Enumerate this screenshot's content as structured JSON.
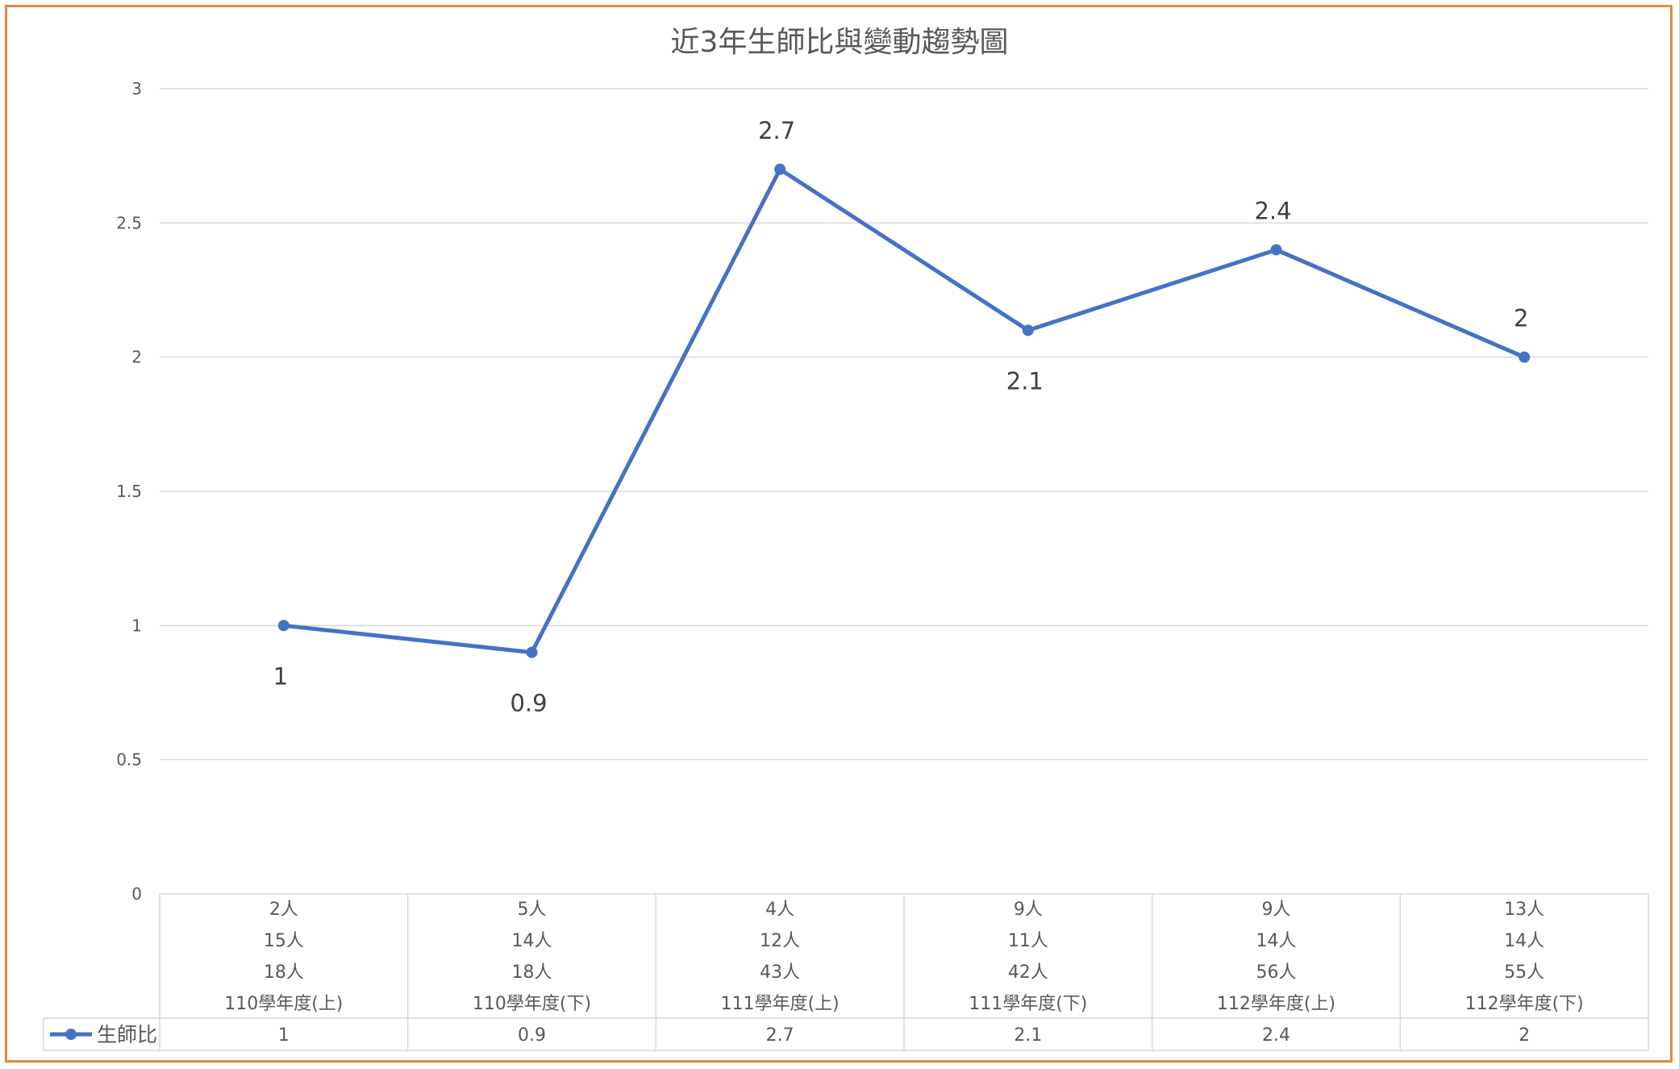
{
  "chart_data": {
    "type": "line",
    "title": "近3年生師比與變動趨勢圖",
    "categories": [
      [
        "2人",
        "15人",
        "18人",
        "110學年度(上)"
      ],
      [
        "5人",
        "14人",
        "18人",
        "110學年度(下)"
      ],
      [
        "4人",
        "12人",
        "43人",
        "111學年度(上)"
      ],
      [
        "9人",
        "11人",
        "42人",
        "111學年度(下)"
      ],
      [
        "9人",
        "14人",
        "56人",
        "112學年度(上)"
      ],
      [
        "13人",
        "14人",
        "55人",
        "112學年度(下)"
      ]
    ],
    "series": [
      {
        "name": "生師比",
        "values": [
          1,
          0.9,
          2.7,
          2.1,
          2.4,
          2
        ],
        "color": "#4472C4"
      }
    ],
    "data_labels": [
      "1",
      "0.9",
      "2.7",
      "2.1",
      "2.4",
      "2"
    ],
    "data_label_positions": [
      "below",
      "below",
      "above",
      "below",
      "above",
      "above"
    ],
    "yticks": [
      "0",
      "0.5",
      "1",
      "1.5",
      "2",
      "2.5",
      "3"
    ],
    "ylim": [
      0,
      3
    ],
    "grid": true,
    "data_table": true,
    "legend": "data-table-left",
    "colors": {
      "frame": "#E08A3C",
      "line": "#4472C4",
      "grid": "#D9D9D9",
      "text": "#595959"
    }
  }
}
